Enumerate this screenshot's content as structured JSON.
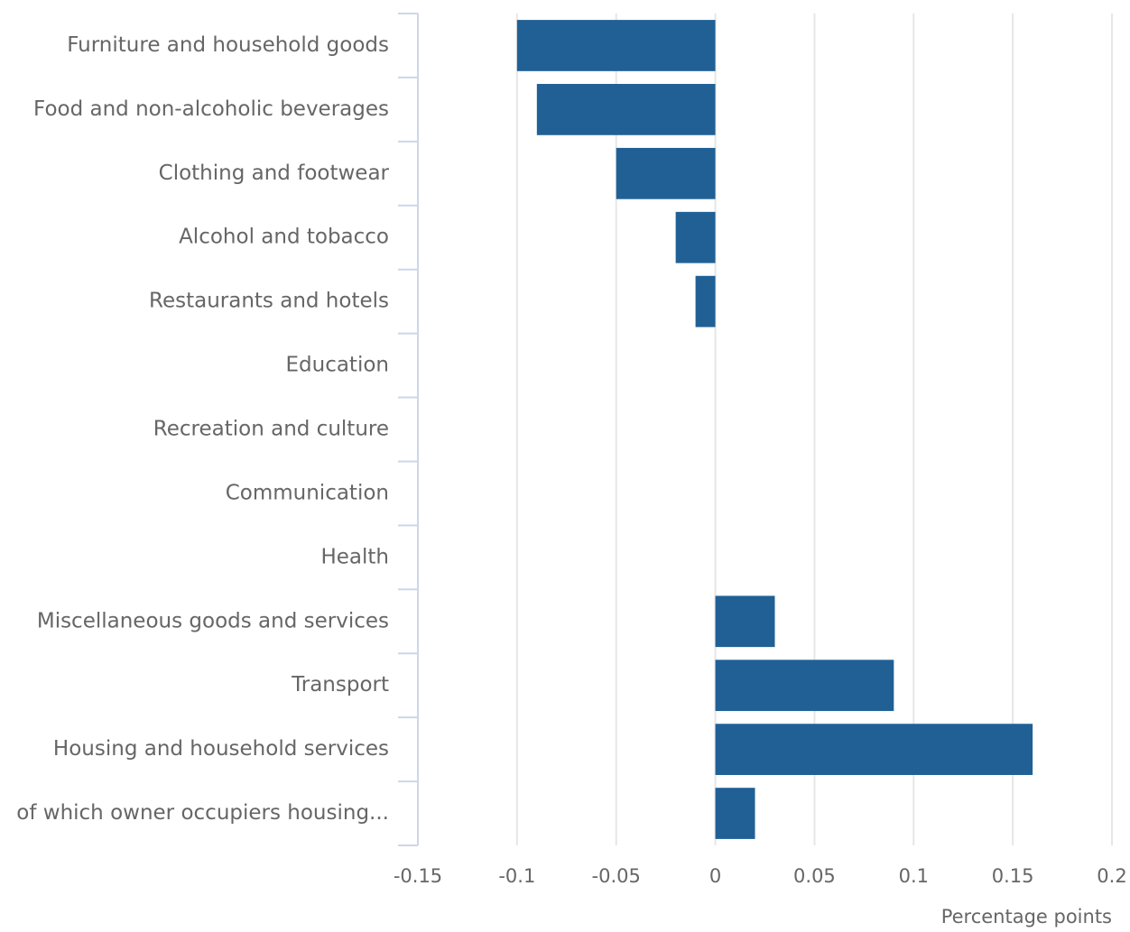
{
  "chart_data": {
    "type": "barh",
    "x_label": "Percentage points",
    "categories": [
      "Furniture and household goods",
      "Food and non-alcoholic beverages",
      "Clothing and footwear",
      "Alcohol and tobacco",
      "Restaurants and hotels",
      "Education",
      "Recreation and culture",
      "Communication",
      "Health",
      "Miscellaneous goods and services",
      "Transport",
      "Housing and household services",
      "of which owner occupiers housing..."
    ],
    "values": [
      -0.1,
      -0.09,
      -0.05,
      -0.02,
      -0.01,
      0,
      0,
      0,
      0,
      0.03,
      0.09,
      0.16,
      0.02
    ],
    "color": "#206095",
    "xlim": [
      -0.15,
      0.2
    ],
    "xticks": [
      -0.15,
      -0.1,
      -0.05,
      0,
      0.05,
      0.1,
      0.15,
      0.2
    ],
    "grid": true
  }
}
